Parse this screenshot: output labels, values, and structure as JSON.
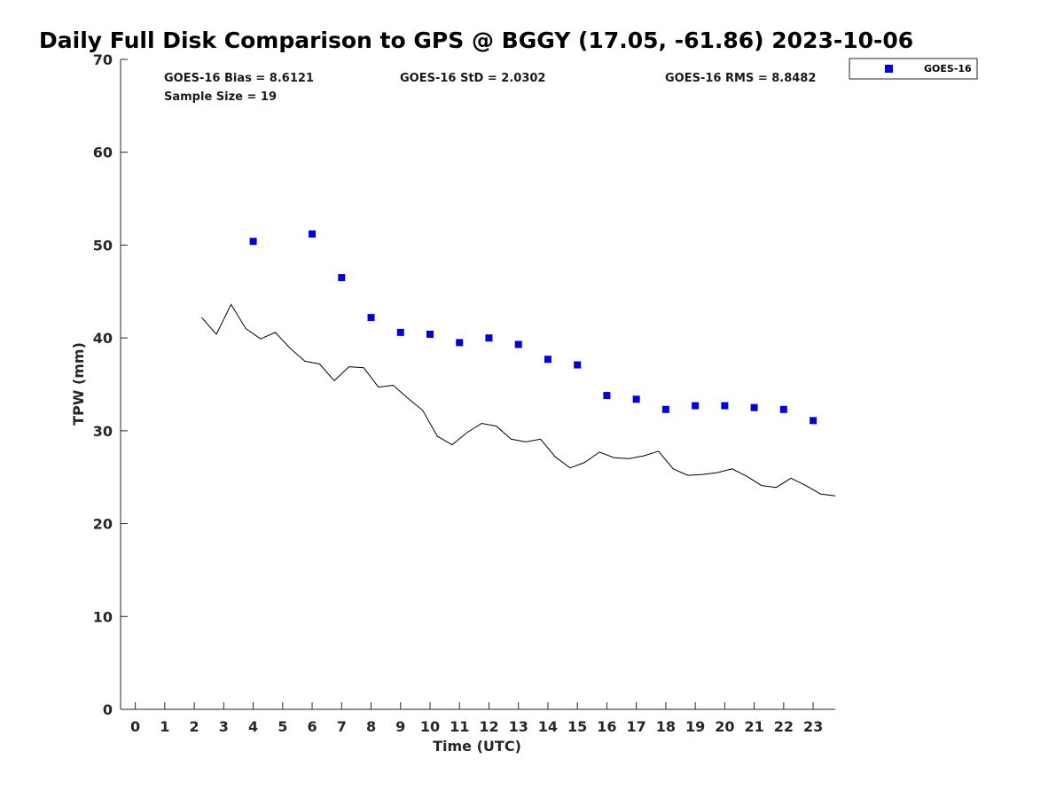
{
  "chart_data": {
    "type": "scatter",
    "title": "Daily Full Disk Comparison to GPS @ BGGY (17.05, -61.86) 2023-10-06",
    "xlabel": "Time (UTC)",
    "ylabel": "TPW (mm)",
    "xlim": [
      -0.5,
      23.75
    ],
    "ylim": [
      0,
      70
    ],
    "x_ticks": [
      0,
      1,
      2,
      3,
      4,
      5,
      6,
      7,
      8,
      9,
      10,
      11,
      12,
      13,
      14,
      15,
      16,
      17,
      18,
      19,
      20,
      21,
      22,
      23
    ],
    "y_ticks": [
      0,
      10,
      20,
      30,
      40,
      50,
      60,
      70
    ],
    "grid": false,
    "legend_position": "top-right-outside",
    "stats": {
      "bias": "GOES-16 Bias = 8.6121",
      "std": "GOES-16 StD = 2.0302",
      "rms": "GOES-16 RMS = 8.8482",
      "sample_size": "Sample Size = 19"
    },
    "series": [
      {
        "name": "GOES-16",
        "kind": "scatter",
        "marker": "square",
        "color": "#0000dd",
        "x": [
          4,
          6,
          7,
          8,
          9,
          10,
          11,
          12,
          13,
          14,
          15,
          16,
          17,
          18,
          19,
          20,
          21,
          22,
          23
        ],
        "y": [
          50.4,
          51.2,
          46.5,
          42.2,
          40.6,
          40.4,
          39.5,
          40.0,
          39.3,
          37.7,
          37.1,
          33.8,
          33.4,
          32.3,
          32.7,
          32.7,
          32.5,
          32.3,
          31.1
        ]
      },
      {
        "kind": "line",
        "color": "#000000",
        "x": [
          2.25,
          2.75,
          3.25,
          3.75,
          4.25,
          4.75,
          5.25,
          5.75,
          6.25,
          6.75,
          7.25,
          7.75,
          8.25,
          8.75,
          9.25,
          9.75,
          10.25,
          10.75,
          11.25,
          11.75,
          12.25,
          12.75,
          13.25,
          13.75,
          14.25,
          14.75,
          15.25,
          15.75,
          16.25,
          16.75,
          17.25,
          17.75,
          18.25,
          18.75,
          19.25,
          19.75,
          20.25,
          20.75,
          21.25,
          21.75,
          22.25,
          22.75,
          23.25,
          23.75
        ],
        "y": [
          42.2,
          40.4,
          43.6,
          41.0,
          39.9,
          40.6,
          38.9,
          37.5,
          37.2,
          35.4,
          36.9,
          36.8,
          34.7,
          34.9,
          33.5,
          32.2,
          29.4,
          28.5,
          29.8,
          30.8,
          30.5,
          29.1,
          28.8,
          29.1,
          27.2,
          26.0,
          26.6,
          27.7,
          27.1,
          27.0,
          27.3,
          27.8,
          25.9,
          25.2,
          25.3,
          25.5,
          25.9,
          25.1,
          24.1,
          23.9,
          24.9,
          24.1,
          23.2,
          23.0
        ]
      }
    ]
  }
}
